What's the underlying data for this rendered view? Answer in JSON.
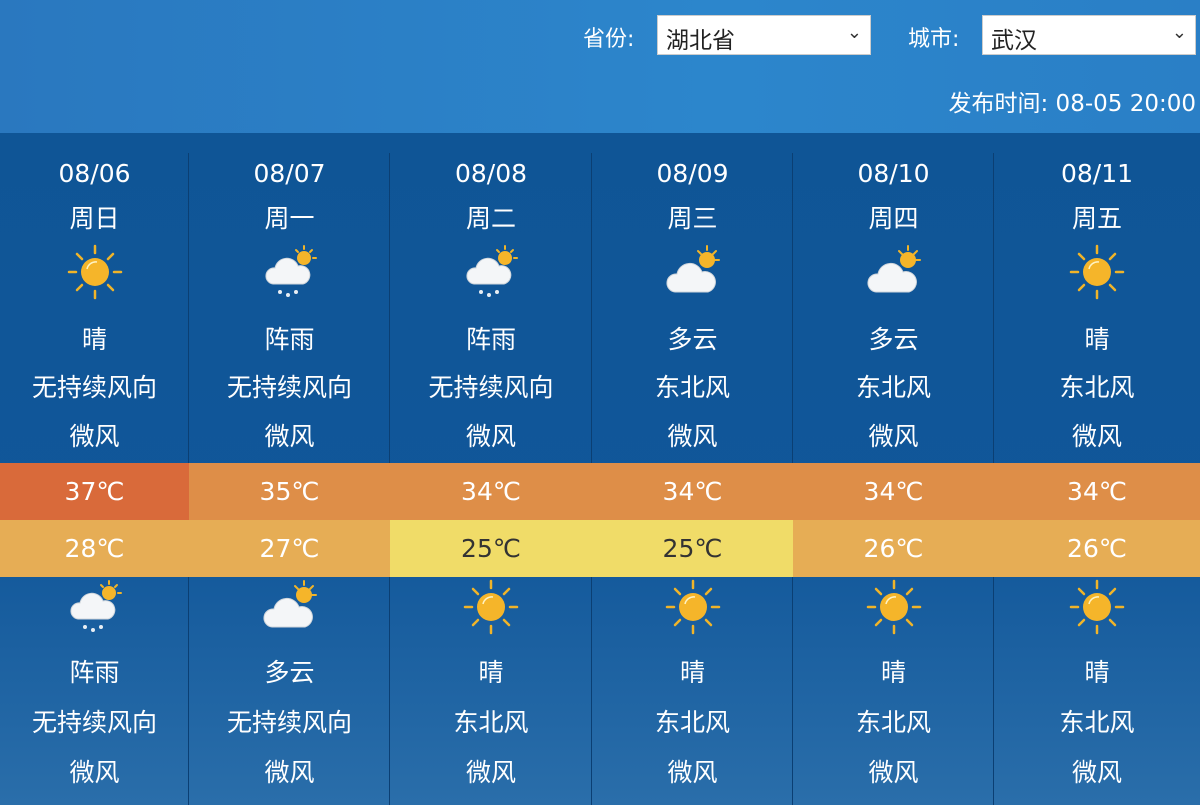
{
  "header": {
    "province_label": "省份:",
    "province_value": "湖北省",
    "city_label": "城市:",
    "city_value": "武汉",
    "publish_time": "发布时间: 08-05 20:00"
  },
  "colors": {
    "header_bg": "#2a80c6",
    "table_bg": "#0f5596",
    "high_hot": "#d96a3a",
    "high": "#de8e48",
    "low": "#e6ad55",
    "low_mild": "#f0dc68"
  },
  "days": [
    {
      "date": "08/06",
      "weekday": "周日",
      "day_icon": "sun-icon",
      "day_weather": "晴",
      "day_wind": "无持续风向",
      "day_power": "微风",
      "high": "37℃",
      "low": "28℃",
      "night_icon": "rain-cloud-sun-icon",
      "night_weather": "阵雨",
      "night_wind": "无持续风向",
      "night_power": "微风",
      "high_color": "#d96a3a",
      "low_color": "#e6ad55"
    },
    {
      "date": "08/07",
      "weekday": "周一",
      "day_icon": "rain-cloud-sun-icon",
      "day_weather": "阵雨",
      "day_wind": "无持续风向",
      "day_power": "微风",
      "high": "35℃",
      "low": "27℃",
      "night_icon": "cloud-sun-icon",
      "night_weather": "多云",
      "night_wind": "无持续风向",
      "night_power": "微风",
      "high_color": "#de8e48",
      "low_color": "#e6ad55"
    },
    {
      "date": "08/08",
      "weekday": "周二",
      "day_icon": "rain-cloud-sun-icon",
      "day_weather": "阵雨",
      "day_wind": "无持续风向",
      "day_power": "微风",
      "high": "34℃",
      "low": "25℃",
      "night_icon": "sun-icon",
      "night_weather": "晴",
      "night_wind": "东北风",
      "night_power": "微风",
      "high_color": "#de8e48",
      "low_color": "#f0dc68"
    },
    {
      "date": "08/09",
      "weekday": "周三",
      "day_icon": "cloud-sun-icon",
      "day_weather": "多云",
      "day_wind": "东北风",
      "day_power": "微风",
      "high": "34℃",
      "low": "25℃",
      "night_icon": "sun-icon",
      "night_weather": "晴",
      "night_wind": "东北风",
      "night_power": "微风",
      "high_color": "#de8e48",
      "low_color": "#f0dc68"
    },
    {
      "date": "08/10",
      "weekday": "周四",
      "day_icon": "cloud-sun-icon",
      "day_weather": "多云",
      "day_wind": "东北风",
      "day_power": "微风",
      "high": "34℃",
      "low": "26℃",
      "night_icon": "sun-icon",
      "night_weather": "晴",
      "night_wind": "东北风",
      "night_power": "微风",
      "high_color": "#de8e48",
      "low_color": "#e6ad55"
    },
    {
      "date": "08/11",
      "weekday": "周五",
      "day_icon": "sun-icon",
      "day_weather": "晴",
      "day_wind": "东北风",
      "day_power": "微风",
      "high": "34℃",
      "low": "26℃",
      "night_icon": "sun-icon",
      "night_weather": "晴",
      "night_wind": "东北风",
      "night_power": "微风",
      "high_color": "#de8e48",
      "low_color": "#e6ad55"
    }
  ]
}
